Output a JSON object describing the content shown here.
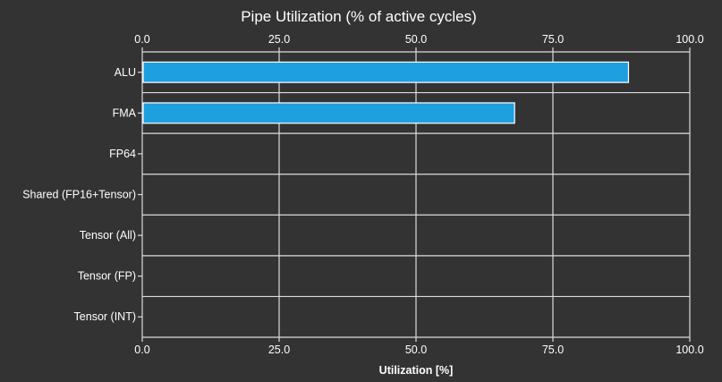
{
  "chart_data": {
    "type": "bar",
    "orientation": "horizontal",
    "title": "Pipe Utilization (% of active cycles)",
    "xlabel": "Utilization [%]",
    "ylabel": "",
    "xlim": [
      0,
      100
    ],
    "x_ticks": [
      "0.0",
      "25.0",
      "50.0",
      "75.0",
      "100.0"
    ],
    "x_tick_values": [
      0,
      25,
      50,
      75,
      100
    ],
    "categories": [
      "ALU",
      "FMA",
      "FP64",
      "Shared (FP16+Tensor)",
      "Tensor (All)",
      "Tensor (FP)",
      "Tensor (INT)"
    ],
    "values": [
      88.8,
      68.0,
      0,
      0,
      0,
      0,
      0
    ],
    "grid": true,
    "ticks_on_top_and_bottom": true,
    "colors": {
      "background": "#333333",
      "bar": "#1e9fe0",
      "bar_border": "#ffffff",
      "grid": "#dcdcdc",
      "text": "#ffffff"
    }
  }
}
